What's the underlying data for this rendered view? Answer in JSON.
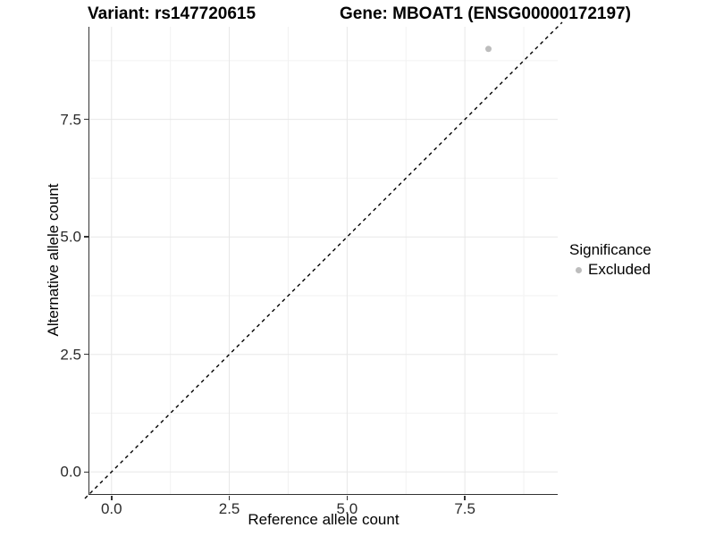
{
  "titles": {
    "variant": "Variant: rs147720615",
    "gene": "Gene: MBOAT1 (ENSG00000172197)"
  },
  "chart_data": {
    "type": "scatter",
    "title_left": "Variant: rs147720615",
    "title_right": "Gene: MBOAT1 (ENSG00000172197)",
    "xlabel": "Reference allele count",
    "ylabel": "Alternative allele count",
    "xlim": [
      -0.47,
      9.47
    ],
    "ylim": [
      -0.47,
      9.47
    ],
    "x_major_ticks": [
      0.0,
      2.5,
      5.0,
      7.5
    ],
    "y_major_ticks": [
      0.0,
      2.5,
      5.0,
      7.5
    ],
    "x_minor_ticks": [
      1.25,
      3.75,
      6.25,
      8.75
    ],
    "y_minor_ticks": [
      1.25,
      3.75,
      6.25,
      8.75
    ],
    "grid": true,
    "points": [
      {
        "x": 8,
        "y": 9,
        "series": "Excluded"
      }
    ],
    "reference_line": {
      "slope": 1,
      "intercept": 0,
      "style": "dashed",
      "color": "#000000"
    },
    "legend": {
      "title": "Significance",
      "position": "right",
      "entries": [
        {
          "label": "Excluded",
          "color": "#bdbdbd"
        }
      ]
    }
  },
  "colors": {
    "point": "#bdbdbd",
    "grid_major": "#e7e7e7",
    "grid_minor": "#f2f2f2",
    "axis_line": "#333333",
    "dashed_line": "#000000"
  }
}
